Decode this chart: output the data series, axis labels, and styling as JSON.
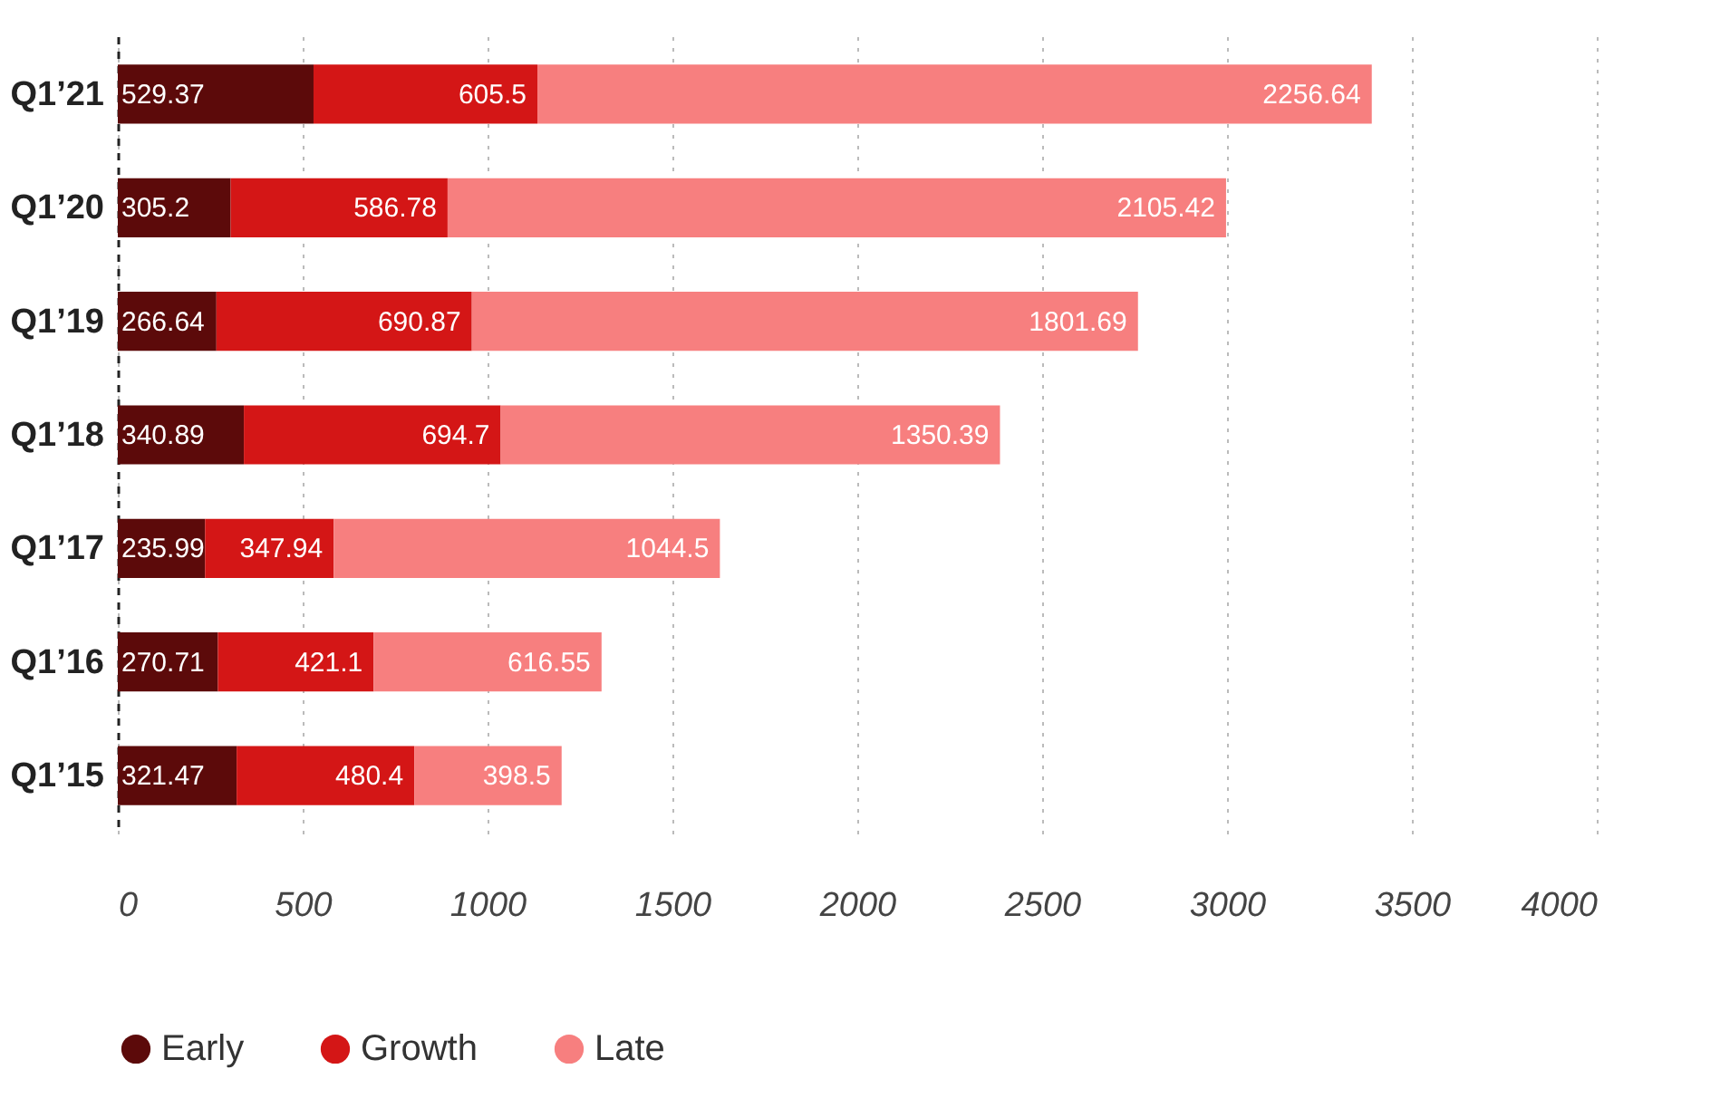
{
  "chart_data": {
    "type": "bar",
    "orientation": "horizontal",
    "stacked": true,
    "categories": [
      "Q1’21",
      "Q1’20",
      "Q1’19",
      "Q1’18",
      "Q1’17",
      "Q1’16",
      "Q1’15"
    ],
    "series": [
      {
        "name": "Early",
        "color": "#5c0a0a",
        "values": [
          529.37,
          305.2,
          266.64,
          340.89,
          235.99,
          270.71,
          321.47
        ]
      },
      {
        "name": "Growth",
        "color": "#d41616",
        "values": [
          605.5,
          586.78,
          690.87,
          694.7,
          347.94,
          421.1,
          480.4
        ]
      },
      {
        "name": "Late",
        "color": "#f77f7f",
        "values": [
          2256.64,
          2105.42,
          1801.69,
          1350.39,
          1044.5,
          616.55,
          398.5
        ]
      }
    ],
    "xlim": [
      0,
      4000
    ],
    "xticks": [
      0,
      500,
      1000,
      1500,
      2000,
      2500,
      3000,
      3500,
      4000
    ],
    "grid": "x",
    "legend": "bottom",
    "data_labels": true
  }
}
